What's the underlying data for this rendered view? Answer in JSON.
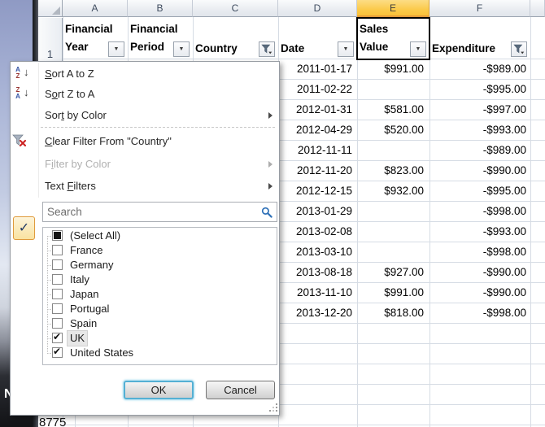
{
  "sheet": {
    "column_letters": [
      "A",
      "B",
      "C",
      "D",
      "E",
      "F"
    ],
    "selected_column": "E",
    "row_number": "1",
    "bottom_left_value": "8775",
    "headers": [
      {
        "col": "A",
        "label": "Financial\nYear",
        "filter": "dropdown"
      },
      {
        "col": "B",
        "label": "Financial\nPeriod",
        "filter": "dropdown"
      },
      {
        "col": "C",
        "label": "Country",
        "filter": "funnel"
      },
      {
        "col": "D",
        "label": "Date",
        "filter": "dropdown"
      },
      {
        "col": "E",
        "label": "Sales\nValue",
        "filter": "dropdown",
        "active_cell": true
      },
      {
        "col": "F",
        "label": "Expenditure",
        "filter": "funnel"
      }
    ],
    "rows": [
      {
        "date": "2011-01-17",
        "sales": "$991.00",
        "expenditure": "-$989.00"
      },
      {
        "date": "2011-02-22",
        "sales": "",
        "expenditure": "-$995.00"
      },
      {
        "date": "2012-01-31",
        "sales": "$581.00",
        "expenditure": "-$997.00"
      },
      {
        "date": "2012-04-29",
        "sales": "$520.00",
        "expenditure": "-$993.00"
      },
      {
        "date": "2012-11-11",
        "sales": "",
        "expenditure": "-$989.00"
      },
      {
        "date": "2012-11-20",
        "sales": "$823.00",
        "expenditure": "-$990.00"
      },
      {
        "date": "2012-12-15",
        "sales": "$932.00",
        "expenditure": "-$995.00"
      },
      {
        "date": "2013-01-29",
        "sales": "",
        "expenditure": "-$998.00"
      },
      {
        "date": "2013-02-08",
        "sales": "",
        "expenditure": "-$993.00"
      },
      {
        "date": "2013-03-10",
        "sales": "",
        "expenditure": "-$998.00"
      },
      {
        "date": "2013-08-18",
        "sales": "$927.00",
        "expenditure": "-$990.00"
      },
      {
        "date": "2013-11-10",
        "sales": "$991.00",
        "expenditure": "-$990.00"
      },
      {
        "date": "2013-12-20",
        "sales": "$818.00",
        "expenditure": "-$998.00"
      }
    ]
  },
  "filter_menu": {
    "items": [
      {
        "label": "Sort A to Z",
        "icon": "sort-az-icon",
        "underline": 0
      },
      {
        "label": "Sort Z to A",
        "icon": "sort-za-icon",
        "underline": 1
      },
      {
        "label": "Sort by Color",
        "submenu": true,
        "underline": 3
      },
      {
        "separator": true
      },
      {
        "label": "Clear Filter From \"Country\"",
        "icon": "clear-filter-icon",
        "underline": 0
      },
      {
        "label": "Filter by Color",
        "submenu": true,
        "disabled": true,
        "underline": 1
      },
      {
        "label": "Text Filters",
        "submenu": true,
        "underline": 5
      }
    ],
    "search_placeholder": "Search",
    "checkmark_glyph": "✓",
    "values": [
      {
        "label": "(Select All)",
        "state": "partial"
      },
      {
        "label": "France",
        "state": "unchecked"
      },
      {
        "label": "Germany",
        "state": "unchecked"
      },
      {
        "label": "Italy",
        "state": "unchecked"
      },
      {
        "label": "Japan",
        "state": "unchecked"
      },
      {
        "label": "Portugal",
        "state": "unchecked"
      },
      {
        "label": "Spain",
        "state": "unchecked"
      },
      {
        "label": "UK",
        "state": "checked",
        "focused": true
      },
      {
        "label": "United States",
        "state": "checked"
      }
    ],
    "ok_label": "OK",
    "cancel_label": "Cancel"
  },
  "desktop": {
    "icon_label": "N"
  },
  "accent_colors": {
    "selected_column_header": "#fbc948",
    "selected_column_border": "#e49c39",
    "ok_button_focus_border": "#54b0d4",
    "checkmark_button_border": "#e09b3d",
    "sort_letter_a_blue": "#3353a4",
    "sort_letter_z_red": "#993734",
    "search_icon_blue": "#2f71b8",
    "clear_filter_x_red": "#cc2222",
    "gridline": "#d6dce4"
  }
}
